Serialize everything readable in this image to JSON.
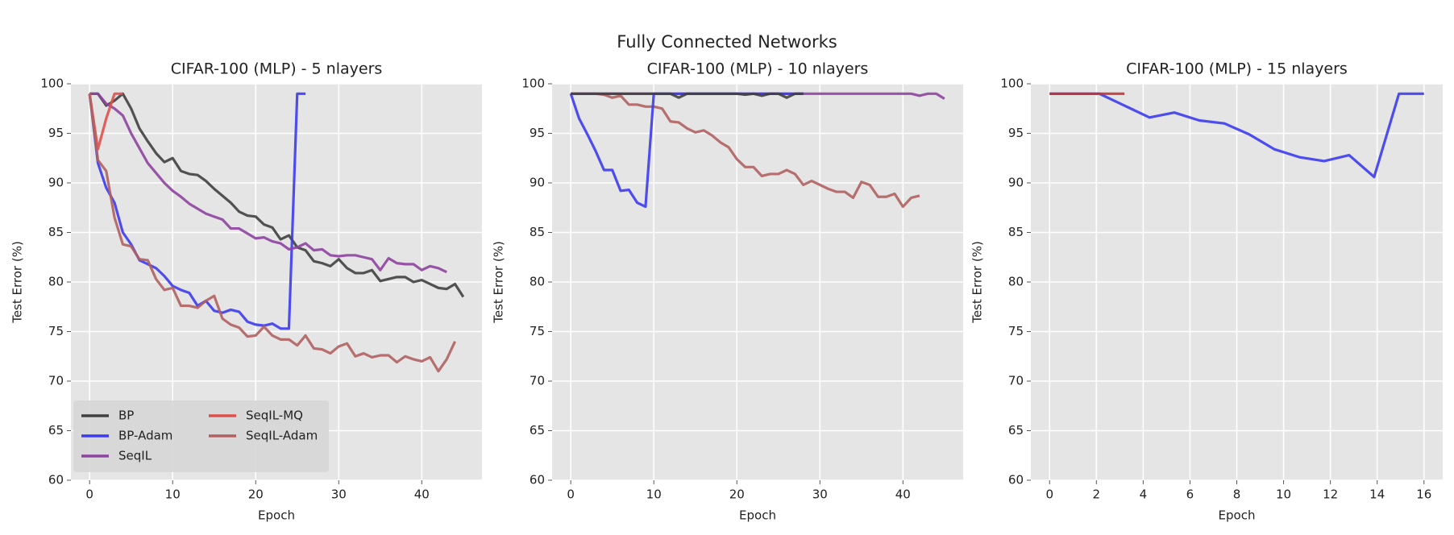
{
  "title": "Fully Connected Networks",
  "chart_data": [
    {
      "type": "line",
      "title": "CIFAR-100 (MLP) - 5 nlayers",
      "x_label": "Epoch",
      "y_label": "Test Error (%)",
      "x": [
        0,
        1,
        2,
        3,
        4,
        5,
        6,
        7,
        8,
        9,
        10,
        11,
        12,
        13,
        14,
        15,
        16,
        17,
        18,
        19,
        20,
        21,
        22,
        23,
        24,
        25,
        26,
        27,
        28,
        29,
        30,
        31,
        32,
        33,
        34,
        35,
        36,
        37,
        38,
        39,
        40,
        41,
        42,
        43,
        44,
        45
      ],
      "xlim": [
        -2.25,
        47.25
      ],
      "xticks": [
        0,
        10,
        20,
        30,
        40
      ],
      "ylim": [
        60,
        100
      ],
      "yticks": [
        60,
        65,
        70,
        75,
        80,
        85,
        90,
        95,
        100
      ],
      "grid": true,
      "legend": "lower left",
      "series": [
        {
          "name": "BP",
          "color": "#404040",
          "values": [
            99,
            99,
            97.8,
            98.3,
            99,
            97.5,
            95.5,
            94.2,
            93,
            92.1,
            92.5,
            91.2,
            90.9,
            90.8,
            90.2,
            89.4,
            88.7,
            88,
            87.1,
            86.7,
            86.6,
            85.8,
            85.5,
            84.3,
            84.7,
            83.5,
            83.2,
            82.1,
            81.9,
            81.6,
            82.3,
            81.4,
            80.9,
            80.9,
            81.2,
            80.1,
            80.3,
            80.5,
            80.5,
            80,
            80.2,
            79.8,
            79.4,
            79.3,
            79.8,
            78.5
          ]
        },
        {
          "name": "BP-Adam",
          "color": "#3b3bf0",
          "values": [
            99,
            92,
            89.5,
            88,
            85,
            83.8,
            82.2,
            81.8,
            81.4,
            80.6,
            79.6,
            79.2,
            78.9,
            77.6,
            78.1,
            77.1,
            76.9,
            77.2,
            77,
            76,
            75.7,
            75.6,
            75.8,
            75.3,
            75.3,
            99,
            99,
            null,
            null,
            null,
            null,
            null,
            null,
            null,
            null,
            null,
            null,
            null,
            null,
            null,
            null,
            null,
            null,
            null,
            null,
            null
          ]
        },
        {
          "name": "SeqIL",
          "color": "#8e44a0",
          "values": [
            99,
            99,
            98,
            97.5,
            96.8,
            95,
            93.5,
            92,
            91,
            90,
            89.2,
            88.6,
            87.9,
            87.4,
            86.9,
            86.6,
            86.3,
            85.4,
            85.4,
            84.9,
            84.4,
            84.5,
            84.1,
            83.9,
            83.3,
            83.5,
            83.9,
            83.2,
            83.3,
            82.7,
            82.6,
            82.7,
            82.7,
            82.5,
            82.3,
            81.2,
            82.4,
            81.9,
            81.8,
            81.8,
            81.2,
            81.6,
            81.4,
            81,
            null,
            null
          ]
        },
        {
          "name": "SeqIL-MQ",
          "color": "#e0504a",
          "values": [
            99,
            93.4,
            96.5,
            99,
            99,
            null,
            null,
            null,
            null,
            null,
            null,
            null,
            null,
            null,
            null,
            null,
            null,
            null,
            null,
            null,
            null,
            null,
            null,
            null,
            null,
            null,
            null,
            null,
            null,
            null,
            null,
            null,
            null,
            null,
            null,
            null,
            null,
            null,
            null,
            null,
            null,
            null,
            null,
            null,
            null,
            null
          ]
        },
        {
          "name": "SeqIL-Adam",
          "color": "#b06060",
          "values": [
            99,
            92.3,
            91.2,
            86.5,
            83.8,
            83.6,
            82.3,
            82.2,
            80.3,
            79.2,
            79.4,
            77.6,
            77.6,
            77.4,
            78.1,
            78.6,
            76.3,
            75.7,
            75.4,
            74.5,
            74.6,
            75.5,
            74.6,
            74.2,
            74.2,
            73.6,
            74.6,
            73.3,
            73.2,
            72.8,
            73.5,
            73.8,
            72.5,
            72.8,
            72.4,
            72.6,
            72.6,
            71.9,
            72.5,
            72.2,
            72,
            72.4,
            71,
            72.2,
            74,
            null
          ]
        }
      ]
    },
    {
      "type": "line",
      "title": "CIFAR-100 (MLP) - 10 nlayers",
      "x_label": "Epoch",
      "y_label": "Test Error (%)",
      "x": [
        0,
        1,
        2,
        3,
        4,
        5,
        6,
        7,
        8,
        9,
        10,
        11,
        12,
        13,
        14,
        15,
        16,
        17,
        18,
        19,
        20,
        21,
        22,
        23,
        24,
        25,
        26,
        27,
        28,
        29,
        30,
        31,
        32,
        33,
        34,
        35,
        36,
        37,
        38,
        39,
        40,
        41,
        42,
        43,
        44,
        45
      ],
      "xlim": [
        -2.25,
        47.25
      ],
      "xticks": [
        0,
        10,
        20,
        30,
        40
      ],
      "ylim": [
        60,
        100
      ],
      "yticks": [
        60,
        65,
        70,
        75,
        80,
        85,
        90,
        95,
        100
      ],
      "grid": true,
      "series": [
        {
          "name": "SeqIL-Adam",
          "color": "#b06060",
          "values": [
            99,
            99,
            99,
            99,
            98.9,
            98.6,
            98.8,
            97.9,
            97.9,
            97.7,
            97.7,
            97.5,
            96.2,
            96.1,
            95.5,
            95.1,
            95.3,
            94.8,
            94.1,
            93.6,
            92.4,
            91.6,
            91.6,
            90.7,
            90.9,
            90.9,
            91.3,
            90.9,
            89.8,
            90.2,
            89.8,
            89.4,
            89.1,
            89.1,
            88.5,
            90.1,
            89.8,
            88.6,
            88.6,
            88.9,
            87.6,
            88.5,
            88.7,
            null,
            null,
            null
          ]
        },
        {
          "name": "SeqIL",
          "color": "#8e44a0",
          "values": [
            99,
            99,
            99,
            99,
            99,
            99,
            99,
            99,
            99,
            99,
            99,
            99,
            99,
            99,
            99,
            99,
            99,
            99,
            99,
            99,
            99,
            99,
            99,
            99,
            99,
            99,
            99,
            99,
            99,
            99,
            99,
            99,
            99,
            99,
            99,
            99,
            99,
            99,
            99,
            99,
            99,
            99,
            98.8,
            99,
            99,
            98.5
          ]
        },
        {
          "name": "BP-Adam",
          "color": "#3b3bf0",
          "values": [
            99,
            96.5,
            94.9,
            93.2,
            91.3,
            91.3,
            89.2,
            89.3,
            88,
            87.6,
            99,
            99,
            99,
            99,
            99,
            99,
            99,
            99,
            99,
            99,
            99,
            99,
            99,
            99,
            99,
            99,
            99,
            99,
            99,
            null,
            null,
            null,
            null,
            null,
            null,
            null,
            null,
            null,
            null,
            null,
            null,
            null,
            null,
            null,
            null,
            null
          ]
        },
        {
          "name": "BP",
          "color": "#404040",
          "values": [
            99,
            99,
            99,
            99,
            99,
            99,
            99,
            99,
            99,
            99,
            99,
            99,
            99,
            98.6,
            99,
            99,
            99,
            99,
            99,
            99,
            99,
            98.9,
            99,
            98.8,
            99,
            99,
            98.6,
            99,
            99,
            null,
            null,
            null,
            null,
            null,
            null,
            null,
            null,
            null,
            null,
            null,
            null,
            null,
            null,
            null,
            null,
            null
          ]
        }
      ]
    },
    {
      "type": "line",
      "title": "CIFAR-100 (MLP) - 15 nlayers",
      "x_label": "Epoch",
      "y_label": "Test Error (%)",
      "x": [
        0,
        1.07,
        2.13,
        3.2,
        4.27,
        5.33,
        6.4,
        7.47,
        8.53,
        9.6,
        10.67,
        11.73,
        12.8,
        13.87,
        14.93,
        16
      ],
      "xlim": [
        -0.8,
        16.8
      ],
      "xticks": [
        0,
        2,
        4,
        6,
        8,
        10,
        12,
        14,
        16
      ],
      "ylim": [
        60,
        100
      ],
      "yticks": [
        60,
        65,
        70,
        75,
        80,
        85,
        90,
        95,
        100
      ],
      "grid": true,
      "series": [
        {
          "name": "BP-Adam",
          "color": "#3b3bf0",
          "values": [
            99,
            99,
            99,
            97.8,
            96.6,
            97.1,
            96.3,
            96,
            94.9,
            93.4,
            92.6,
            92.2,
            92.8,
            90.6,
            99,
            99
          ]
        },
        {
          "name": "SeqIL-MQ",
          "color": "#c03535",
          "values": [
            99,
            99,
            99,
            99,
            null,
            null,
            null,
            null,
            null,
            null,
            null,
            null,
            null,
            null,
            null,
            null
          ]
        }
      ]
    }
  ]
}
